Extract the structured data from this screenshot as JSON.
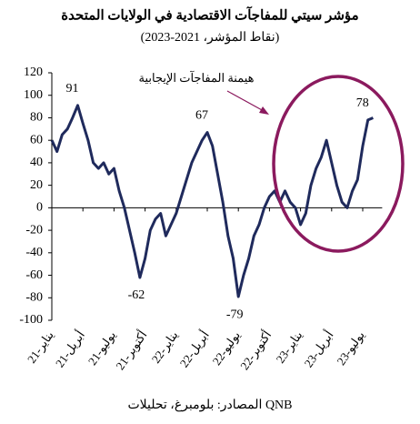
{
  "chart_data": {
    "type": "line",
    "title": "مؤشر سيتي للمفاجآت الاقتصادية في الولايات المتحدة",
    "subtitle": "(نقاط المؤشر، 2021-2023)",
    "source": "المصادر: بلومبرغ، تحليلات QNB",
    "annotation": "هيمنة المفاجآت الإيجابية",
    "categories": [
      "يناير-21",
      null,
      null,
      null,
      null,
      null,
      "أبريل-21",
      null,
      null,
      null,
      null,
      null,
      "يوليو-21",
      null,
      null,
      null,
      null,
      null,
      "أكتوبر-21",
      null,
      null,
      null,
      null,
      null,
      "يناير-22",
      null,
      null,
      null,
      null,
      null,
      "أبريل-22",
      null,
      null,
      null,
      null,
      null,
      "يوليو-22",
      null,
      null,
      null,
      null,
      null,
      "أكتوبر-22",
      null,
      null,
      null,
      null,
      null,
      "يناير-23",
      null,
      null,
      null,
      null,
      null,
      "أبريل-23",
      null,
      null,
      null,
      null,
      null,
      "يوليو-23",
      null,
      null
    ],
    "series": [
      {
        "color": "#1f2a5c",
        "values": [
          60,
          50,
          65,
          70,
          80,
          91,
          75,
          60,
          40,
          35,
          40,
          30,
          35,
          15,
          0,
          -20,
          -40,
          -62,
          -45,
          -20,
          -10,
          -5,
          -25,
          -15,
          -5,
          10,
          25,
          40,
          50,
          60,
          67,
          55,
          30,
          5,
          -25,
          -45,
          -79,
          -60,
          -45,
          -25,
          -15,
          0,
          10,
          15,
          5,
          15,
          5,
          0,
          -15,
          -5,
          20,
          35,
          45,
          60,
          40,
          20,
          5,
          0,
          15,
          25,
          55,
          78,
          80
        ],
        "value_labels": [
          null,
          null,
          null,
          null,
          null,
          "91",
          null,
          null,
          null,
          null,
          null,
          null,
          null,
          null,
          null,
          null,
          null,
          "-62",
          null,
          null,
          null,
          null,
          null,
          null,
          null,
          null,
          null,
          null,
          null,
          null,
          "67",
          null,
          null,
          null,
          null,
          null,
          "-79",
          null,
          null,
          null,
          null,
          null,
          null,
          null,
          null,
          null,
          null,
          null,
          null,
          null,
          null,
          null,
          null,
          null,
          null,
          null,
          null,
          null,
          null,
          null,
          null,
          "78",
          null
        ]
      }
    ],
    "ylim": [
      -100,
      120
    ],
    "yticks": [
      -100,
      -80,
      -60,
      -40,
      -20,
      0,
      20,
      40,
      60,
      80,
      100,
      120
    ],
    "annotation_color": "#8b1a5e"
  }
}
